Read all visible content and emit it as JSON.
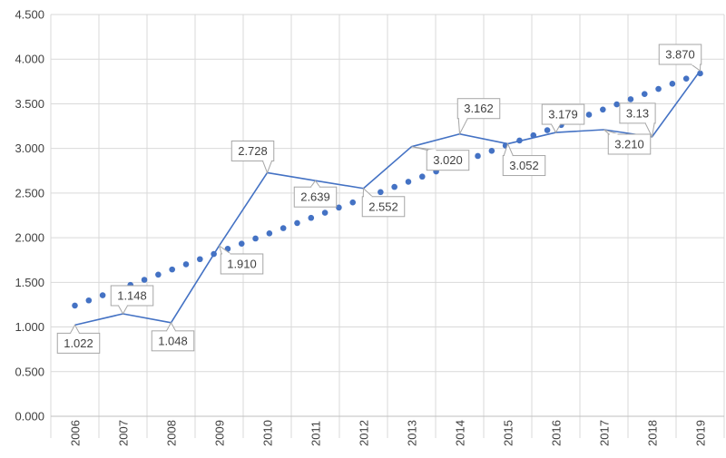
{
  "chart_data": {
    "type": "line",
    "categories": [
      "2006",
      "2007",
      "2008",
      "2009",
      "2010",
      "2011",
      "2012",
      "2013",
      "2014",
      "2015",
      "2016",
      "2017",
      "2018",
      "2019"
    ],
    "series": [
      {
        "values": [
          1.022,
          1.148,
          1.048,
          1.91,
          2.728,
          2.639,
          2.552,
          3.02,
          3.162,
          3.052,
          3.179,
          3.21,
          3.13,
          3.87
        ],
        "data_labels": [
          "1.022",
          "1.148",
          "1.048",
          "1.910",
          "2.728",
          "2.639",
          "2.552",
          "3.020",
          "3.162",
          "3.052",
          "3.179",
          "3.210",
          "3.13",
          "3.870"
        ],
        "style": "solid",
        "color": "#4472c4"
      },
      {
        "kind": "linear-trendline",
        "values_start": 1.24,
        "values_end": 3.84,
        "style": "dotted",
        "color": "#4472c4"
      }
    ],
    "y_ticks": [
      "0.000",
      "0.500",
      "1.000",
      "1.500",
      "2.000",
      "2.500",
      "3.000",
      "3.500",
      "4.000",
      "4.500"
    ],
    "ylim": [
      0,
      4.5
    ],
    "grid": true,
    "legend": "none",
    "title": "",
    "xlabel": "",
    "ylabel": ""
  }
}
